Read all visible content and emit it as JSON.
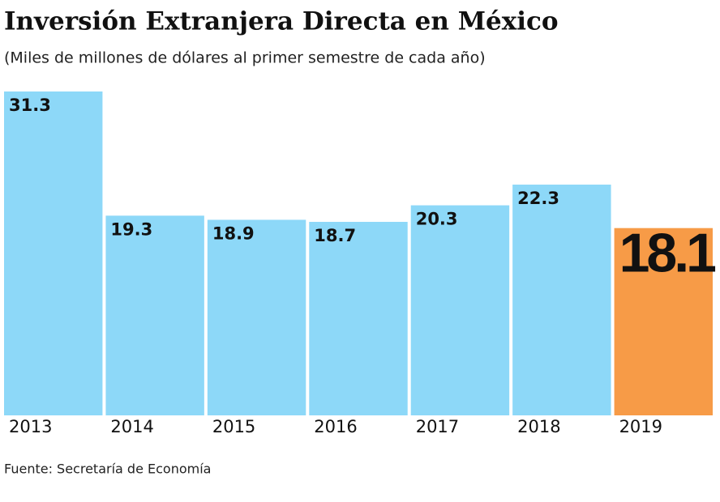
{
  "chart_data": {
    "type": "bar",
    "title": "Inversión Extranjera Directa en México",
    "subtitle": "(Miles de millones de dólares al primer semestre de cada año)",
    "source": "Fuente: Secretaría de Economía",
    "categories": [
      "2013",
      "2014",
      "2015",
      "2016",
      "2017",
      "2018",
      "2019"
    ],
    "values": [
      31.3,
      19.3,
      18.9,
      18.7,
      20.3,
      22.3,
      18.1
    ],
    "colors": [
      "#8dd8f8",
      "#8dd8f8",
      "#8dd8f8",
      "#8dd8f8",
      "#8dd8f8",
      "#8dd8f8",
      "#f79b47"
    ],
    "ylim": [
      0,
      31.3
    ]
  }
}
